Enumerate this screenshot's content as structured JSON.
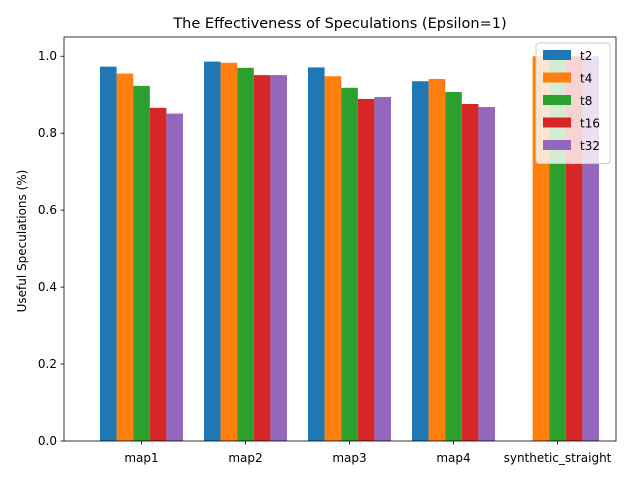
{
  "chart_data": {
    "type": "bar",
    "title": "The Effectiveness of Speculations (Epsilon=1)",
    "xlabel": "",
    "ylabel": "Useful Speculations (%)",
    "ylim": [
      0,
      1.05
    ],
    "yticks": [
      0.0,
      0.2,
      0.4,
      0.6,
      0.8,
      1.0
    ],
    "ytick_labels": [
      "0.0",
      "0.2",
      "0.4",
      "0.6",
      "0.8",
      "1.0"
    ],
    "categories": [
      "map1",
      "map2",
      "map3",
      "map4",
      "synthetic_straight"
    ],
    "series": [
      {
        "name": "t2",
        "color": "#1f77b4",
        "values": [
          0.973,
          0.986,
          0.971,
          0.935,
          null
        ]
      },
      {
        "name": "t4",
        "color": "#ff7f0e",
        "values": [
          0.955,
          0.983,
          0.948,
          0.941,
          1.0
        ]
      },
      {
        "name": "t8",
        "color": "#2ca02c",
        "values": [
          0.923,
          0.97,
          0.918,
          0.907,
          1.0
        ]
      },
      {
        "name": "t16",
        "color": "#d62728",
        "values": [
          0.866,
          0.951,
          0.889,
          0.876,
          1.0
        ]
      },
      {
        "name": "t32",
        "color": "#9467bd",
        "values": [
          0.851,
          0.951,
          0.894,
          0.868,
          1.0
        ]
      }
    ],
    "grid": false,
    "legend_position": "top-right"
  }
}
